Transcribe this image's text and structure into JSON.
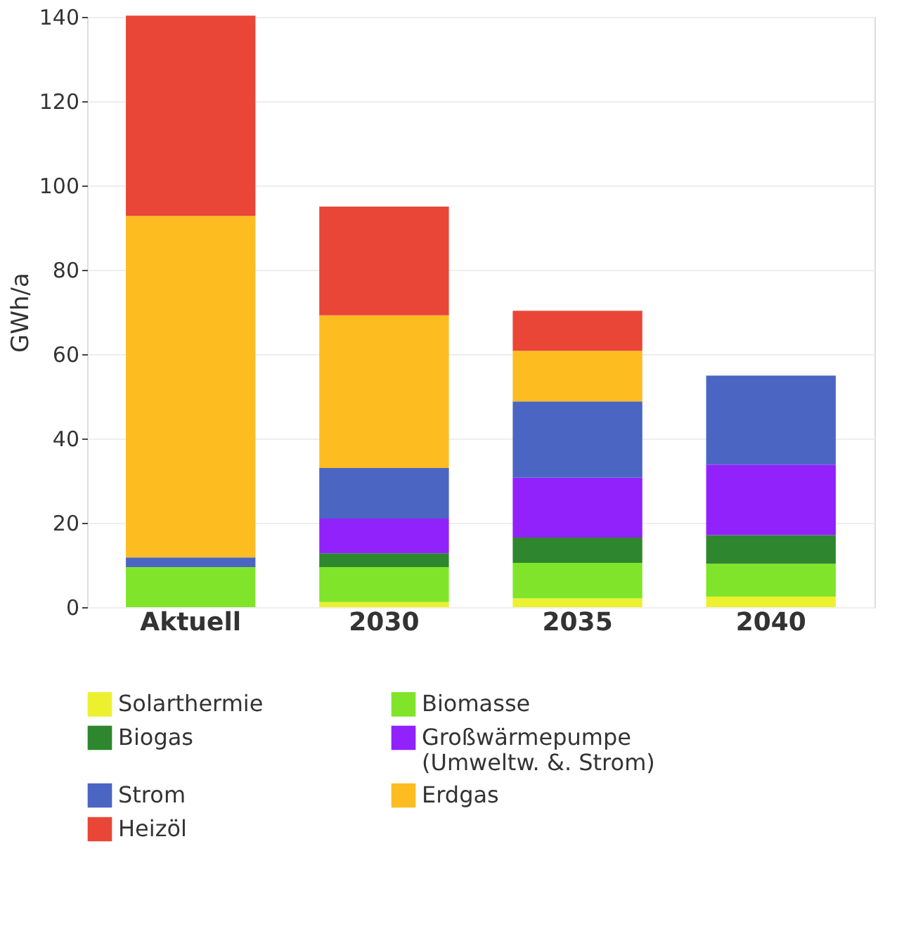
{
  "chart_data": {
    "type": "bar",
    "stacked": true,
    "ylabel": "GWh/a",
    "categories": [
      "Aktuell",
      "2030",
      "2035",
      "2040"
    ],
    "ylim": [
      0,
      140
    ],
    "yticks": [
      0,
      20,
      40,
      60,
      80,
      100,
      120,
      140
    ],
    "grid": "y",
    "legend": "bottom",
    "series": [
      {
        "name": "Solarthermie",
        "color": "#ecf12f",
        "values": [
          0,
          1.2,
          2.1,
          2.5
        ]
      },
      {
        "name": "Biomasse",
        "color": "#80e52a",
        "values": [
          9.5,
          8.3,
          8.4,
          7.8
        ]
      },
      {
        "name": "Biogas",
        "color": "#2e872e",
        "values": [
          0,
          3.3,
          6,
          6.8
        ]
      },
      {
        "name": "Großwärmepumpe\n(Umweltw. &. Strom)",
        "color": "#9122fc",
        "values": [
          0,
          8.2,
          14.2,
          16.7
        ]
      },
      {
        "name": "Strom",
        "color": "#4b65c3",
        "values": [
          2.3,
          12,
          18.1,
          21.1
        ]
      },
      {
        "name": "Erdgas",
        "color": "#fdbd20",
        "values": [
          81,
          36.2,
          12,
          0
        ]
      },
      {
        "name": "Heizöl",
        "color": "#e94637",
        "values": [
          47.5,
          25.8,
          9.5,
          0
        ]
      }
    ]
  }
}
